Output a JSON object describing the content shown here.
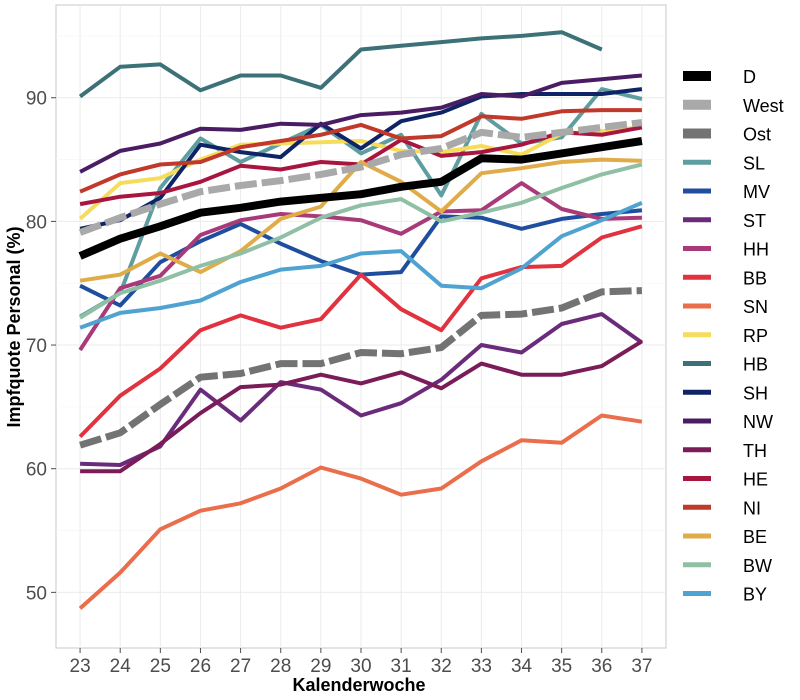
{
  "chart_data": {
    "type": "line",
    "xlabel": "Kalenderwoche",
    "ylabel": "Impfquote Personal (%)",
    "x": [
      23,
      24,
      25,
      26,
      27,
      28,
      29,
      30,
      31,
      32,
      33,
      34,
      35,
      36,
      37
    ],
    "xlim": [
      22.4,
      37.6
    ],
    "ylim": [
      45.5,
      97.5
    ],
    "yticks": [
      50,
      60,
      70,
      80,
      90
    ],
    "grid": true,
    "legend_position": "right",
    "series": [
      {
        "name": "D",
        "color": "#000000",
        "style": "solid",
        "weight": "heavy",
        "values": [
          77.2,
          78.6,
          79.6,
          80.7,
          81.1,
          81.6,
          81.9,
          82.2,
          82.8,
          83.2,
          85.1,
          85.0,
          85.5,
          86.0,
          86.5
        ]
      },
      {
        "name": "West",
        "color": "#A9A9A9",
        "style": "dashed",
        "weight": "heavy",
        "values": [
          79.1,
          80.3,
          81.4,
          82.4,
          82.9,
          83.3,
          83.8,
          84.4,
          85.4,
          85.9,
          87.2,
          86.8,
          87.2,
          87.6,
          88.0
        ]
      },
      {
        "name": "Ost",
        "color": "#737373",
        "style": "dashed",
        "weight": "heavy",
        "values": [
          61.9,
          62.9,
          65.2,
          67.4,
          67.7,
          68.5,
          68.5,
          69.4,
          69.3,
          69.8,
          72.4,
          72.5,
          73.0,
          74.3,
          74.4
        ]
      },
      {
        "name": "SL",
        "color": "#5F9EA0",
        "style": "solid",
        "weight": "normal",
        "values": [
          72.3,
          74.2,
          82.7,
          86.7,
          84.8,
          86.3,
          87.8,
          85.5,
          87.0,
          82.1,
          88.7,
          86.3,
          86.8,
          90.7,
          89.9
        ]
      },
      {
        "name": "MV",
        "color": "#1F4E9F",
        "style": "solid",
        "weight": "normal",
        "values": [
          74.8,
          73.2,
          76.7,
          78.4,
          79.8,
          78.2,
          76.8,
          75.7,
          75.9,
          80.4,
          80.3,
          79.4,
          80.2,
          80.6,
          80.9
        ]
      },
      {
        "name": "ST",
        "color": "#6A2C7A",
        "style": "solid",
        "weight": "normal",
        "values": [
          60.4,
          60.3,
          61.8,
          66.4,
          63.9,
          67.0,
          66.4,
          64.3,
          65.3,
          67.2,
          70.0,
          69.4,
          71.7,
          72.5,
          70.2
        ]
      },
      {
        "name": "HH",
        "color": "#A93A7A",
        "style": "solid",
        "weight": "normal",
        "values": [
          69.6,
          74.6,
          75.6,
          78.9,
          80.1,
          80.6,
          80.4,
          80.1,
          79.0,
          80.8,
          80.9,
          83.1,
          81.0,
          80.2,
          80.3
        ]
      },
      {
        "name": "BB",
        "color": "#E0323F",
        "style": "solid",
        "weight": "normal",
        "values": [
          62.6,
          65.9,
          68.1,
          71.2,
          72.4,
          71.4,
          72.1,
          75.7,
          72.9,
          71.2,
          75.4,
          76.3,
          76.4,
          78.7,
          79.6
        ]
      },
      {
        "name": "SN",
        "color": "#EA6E4B",
        "style": "solid",
        "weight": "normal",
        "values": [
          48.7,
          51.6,
          55.1,
          56.6,
          57.2,
          58.4,
          60.1,
          59.2,
          57.9,
          58.4,
          60.6,
          62.3,
          62.1,
          64.3,
          63.8
        ]
      },
      {
        "name": "RP",
        "color": "#F6DC5B",
        "style": "solid",
        "weight": "normal",
        "values": [
          80.2,
          83.1,
          83.5,
          85.0,
          86.2,
          86.3,
          86.4,
          86.5,
          85.7,
          85.6,
          86.1,
          85.4,
          87.1,
          87.3,
          87.6
        ]
      },
      {
        "name": "HB",
        "color": "#3D7178",
        "style": "solid",
        "weight": "normal",
        "values": [
          90.1,
          92.5,
          92.7,
          90.6,
          91.8,
          91.8,
          90.8,
          93.9,
          94.2,
          94.5,
          94.8,
          95.0,
          95.3,
          93.9,
          null
        ]
      },
      {
        "name": "SH",
        "color": "#0E2466",
        "style": "solid",
        "weight": "normal",
        "values": [
          79.4,
          80.1,
          81.9,
          86.2,
          85.6,
          85.2,
          87.9,
          85.9,
          88.1,
          88.8,
          90.1,
          90.3,
          90.3,
          90.3,
          90.7
        ]
      },
      {
        "name": "NW",
        "color": "#4A1C63",
        "style": "solid",
        "weight": "normal",
        "values": [
          84.0,
          85.7,
          86.3,
          87.5,
          87.4,
          87.9,
          87.8,
          88.6,
          88.8,
          89.2,
          90.3,
          90.1,
          91.2,
          91.5,
          91.8
        ]
      },
      {
        "name": "TH",
        "color": "#7A1C58",
        "style": "solid",
        "weight": "normal",
        "values": [
          59.8,
          59.8,
          62.0,
          64.5,
          66.6,
          66.8,
          67.6,
          66.9,
          67.8,
          66.5,
          68.5,
          67.6,
          67.6,
          68.3,
          70.3
        ]
      },
      {
        "name": "HE",
        "color": "#A81640",
        "style": "solid",
        "weight": "normal",
        "values": [
          81.4,
          82.0,
          82.3,
          83.2,
          84.5,
          84.2,
          84.8,
          84.6,
          86.6,
          85.3,
          85.6,
          86.2,
          87.2,
          87.0,
          87.6
        ]
      },
      {
        "name": "NI",
        "color": "#C0392B",
        "style": "solid",
        "weight": "normal",
        "values": [
          82.4,
          83.8,
          84.6,
          84.8,
          86.0,
          86.5,
          87.0,
          87.8,
          86.7,
          86.9,
          88.5,
          88.3,
          88.9,
          89.0,
          89.0
        ]
      },
      {
        "name": "BE",
        "color": "#E0AC49",
        "style": "solid",
        "weight": "normal",
        "values": [
          75.2,
          75.7,
          77.4,
          75.9,
          77.6,
          80.2,
          81.2,
          84.8,
          83.2,
          80.8,
          83.9,
          84.3,
          84.8,
          85.0,
          84.9
        ]
      },
      {
        "name": "BW",
        "color": "#8FBFA4",
        "style": "solid",
        "weight": "normal",
        "values": [
          72.2,
          74.2,
          75.2,
          76.4,
          77.4,
          78.7,
          80.3,
          81.3,
          81.8,
          80.0,
          80.7,
          81.5,
          82.7,
          83.8,
          84.6
        ]
      },
      {
        "name": "BY",
        "color": "#4FA3D1",
        "style": "solid",
        "weight": "normal",
        "values": [
          71.4,
          72.6,
          73.0,
          73.6,
          75.1,
          76.1,
          76.4,
          77.4,
          77.6,
          74.8,
          74.6,
          76.2,
          78.8,
          80.1,
          81.5
        ]
      }
    ]
  }
}
